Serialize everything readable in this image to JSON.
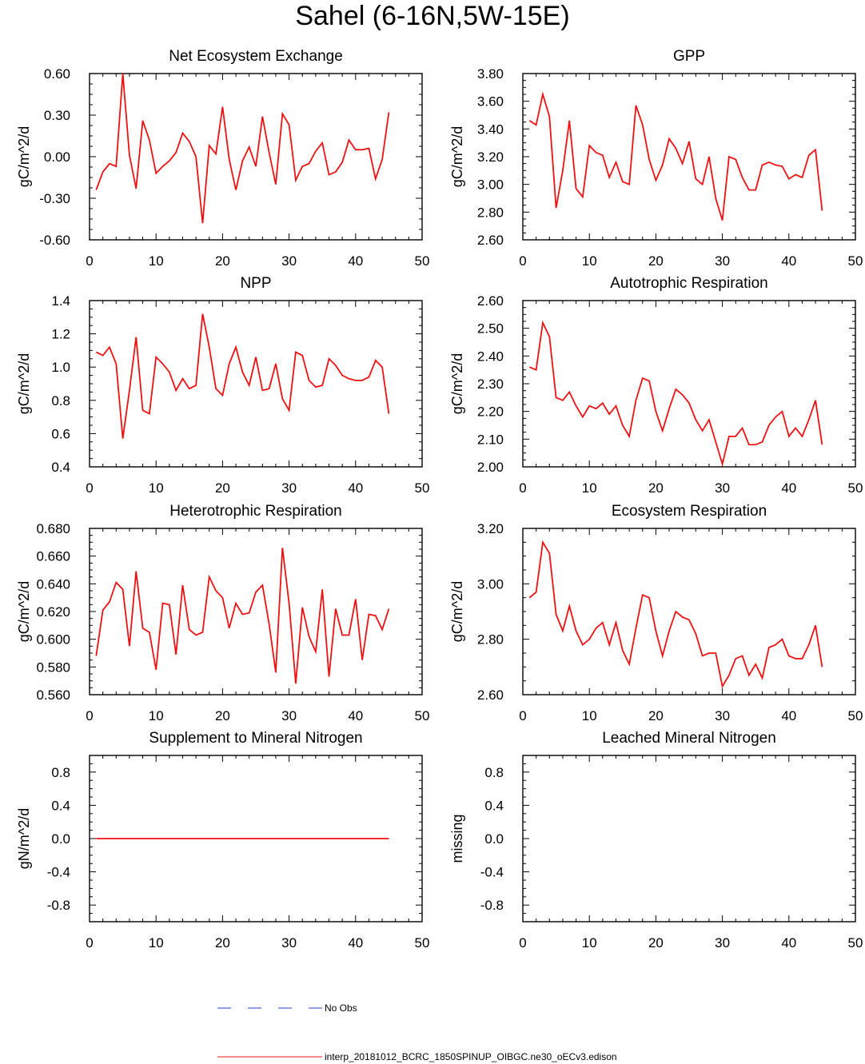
{
  "title": "Sahel (6-16N,5W-15E)",
  "colors": {
    "model": "#ee1111",
    "obs": "#1f3fd6",
    "axis": "#000000"
  },
  "legend": [
    {
      "label": "No Obs",
      "style": "dashed",
      "color": "#1f3fd6"
    },
    {
      "label": "interp_20181012_BCRC_1850SPINUP_OIBGC.ne30_oECv3.edison",
      "style": "solid",
      "color": "#ee1111"
    }
  ],
  "chart_data": [
    {
      "type": "line",
      "title": "Net Ecosystem Exchange",
      "ylabel": "gC/m^2/d",
      "xlim": [
        0,
        50
      ],
      "ylim": [
        -0.6,
        0.6
      ],
      "xticks": [
        "0",
        "10",
        "20",
        "30",
        "40",
        "50"
      ],
      "yticks": [
        "-0.60",
        "-0.30",
        "0.00",
        "0.30",
        "0.60"
      ],
      "x_start": 1,
      "series": [
        {
          "values": [
            -0.24,
            -0.11,
            -0.05,
            -0.07,
            0.6,
            0.01,
            -0.23,
            0.26,
            0.12,
            -0.12,
            -0.07,
            -0.03,
            0.03,
            0.17,
            0.11,
            0.0,
            -0.48,
            0.08,
            0.02,
            0.36,
            -0.02,
            -0.24,
            -0.03,
            0.07,
            -0.07,
            0.29,
            0.03,
            -0.2,
            0.31,
            0.23,
            -0.17,
            -0.07,
            -0.05,
            0.04,
            0.1,
            -0.13,
            -0.11,
            -0.04,
            0.12,
            0.05,
            0.05,
            0.06,
            -0.16,
            -0.02,
            0.32
          ]
        }
      ]
    },
    {
      "type": "line",
      "title": "GPP",
      "ylabel": "gC/m^2/d",
      "xlim": [
        0,
        50
      ],
      "ylim": [
        2.6,
        3.8
      ],
      "xticks": [
        "0",
        "10",
        "20",
        "30",
        "40",
        "50"
      ],
      "yticks": [
        "2.60",
        "2.80",
        "3.00",
        "3.20",
        "3.40",
        "3.60",
        "3.80"
      ],
      "x_start": 1,
      "series": [
        {
          "values": [
            3.46,
            3.43,
            3.65,
            3.49,
            2.83,
            3.1,
            3.46,
            2.97,
            2.91,
            3.28,
            3.23,
            3.21,
            3.05,
            3.16,
            3.02,
            3.0,
            3.57,
            3.43,
            3.18,
            3.03,
            3.14,
            3.33,
            3.26,
            3.15,
            3.31,
            3.04,
            3.0,
            3.2,
            2.9,
            2.74,
            3.2,
            3.18,
            3.05,
            2.96,
            2.96,
            3.14,
            3.16,
            3.14,
            3.13,
            3.04,
            3.07,
            3.05,
            3.21,
            3.25,
            2.81
          ]
        }
      ]
    },
    {
      "type": "line",
      "title": "NPP",
      "ylabel": "gC/m^2/d",
      "xlim": [
        0,
        50
      ],
      "ylim": [
        0.4,
        1.4
      ],
      "xticks": [
        "0",
        "10",
        "20",
        "30",
        "40",
        "50"
      ],
      "yticks": [
        "0.4",
        "0.6",
        "0.8",
        "1.0",
        "1.2",
        "1.4"
      ],
      "x_start": 1,
      "series": [
        {
          "values": [
            1.09,
            1.07,
            1.12,
            1.02,
            0.57,
            0.86,
            1.18,
            0.74,
            0.72,
            1.06,
            1.02,
            0.97,
            0.86,
            0.93,
            0.87,
            0.89,
            1.32,
            1.12,
            0.87,
            0.83,
            1.02,
            1.12,
            0.97,
            0.89,
            1.06,
            0.86,
            0.87,
            1.02,
            0.81,
            0.74,
            1.09,
            1.07,
            0.92,
            0.88,
            0.89,
            1.05,
            1.01,
            0.95,
            0.93,
            0.92,
            0.92,
            0.94,
            1.04,
            1.0,
            0.72
          ]
        }
      ]
    },
    {
      "type": "line",
      "title": "Autotrophic Respiration",
      "ylabel": "gC/m^2/d",
      "xlim": [
        0,
        50
      ],
      "ylim": [
        2.0,
        2.6
      ],
      "xticks": [
        "0",
        "10",
        "20",
        "30",
        "40",
        "50"
      ],
      "yticks": [
        "2.00",
        "2.10",
        "2.20",
        "2.30",
        "2.40",
        "2.50",
        "2.60"
      ],
      "x_start": 1,
      "series": [
        {
          "values": [
            2.36,
            2.35,
            2.52,
            2.47,
            2.25,
            2.24,
            2.27,
            2.22,
            2.18,
            2.22,
            2.21,
            2.23,
            2.19,
            2.22,
            2.15,
            2.11,
            2.24,
            2.32,
            2.31,
            2.2,
            2.13,
            2.21,
            2.28,
            2.26,
            2.23,
            2.17,
            2.13,
            2.17,
            2.09,
            2.01,
            2.11,
            2.11,
            2.14,
            2.08,
            2.08,
            2.09,
            2.15,
            2.18,
            2.2,
            2.11,
            2.14,
            2.11,
            2.17,
            2.24,
            2.08
          ]
        }
      ]
    },
    {
      "type": "line",
      "title": "Heterotrophic Respiration",
      "ylabel": "gC/m^2/d",
      "xlim": [
        0,
        50
      ],
      "ylim": [
        0.56,
        0.68
      ],
      "xticks": [
        "0",
        "10",
        "20",
        "30",
        "40",
        "50"
      ],
      "yticks": [
        "0.560",
        "0.580",
        "0.600",
        "0.620",
        "0.640",
        "0.660",
        "0.680"
      ],
      "x_start": 1,
      "series": [
        {
          "values": [
            0.588,
            0.621,
            0.627,
            0.641,
            0.636,
            0.595,
            0.649,
            0.608,
            0.605,
            0.578,
            0.626,
            0.625,
            0.589,
            0.639,
            0.607,
            0.603,
            0.605,
            0.645,
            0.635,
            0.63,
            0.608,
            0.626,
            0.618,
            0.619,
            0.634,
            0.639,
            0.611,
            0.576,
            0.666,
            0.626,
            0.568,
            0.623,
            0.602,
            0.591,
            0.636,
            0.573,
            0.622,
            0.603,
            0.603,
            0.629,
            0.585,
            0.618,
            0.617,
            0.607,
            0.622
          ]
        }
      ]
    },
    {
      "type": "line",
      "title": "Ecosystem Respiration",
      "ylabel": "gC/m^2/d",
      "xlim": [
        0,
        50
      ],
      "ylim": [
        2.6,
        3.2
      ],
      "xticks": [
        "0",
        "10",
        "20",
        "30",
        "40",
        "50"
      ],
      "yticks": [
        "2.60",
        "2.80",
        "3.00",
        "3.20"
      ],
      "x_start": 1,
      "series": [
        {
          "values": [
            2.95,
            2.97,
            3.15,
            3.11,
            2.89,
            2.83,
            2.92,
            2.83,
            2.78,
            2.8,
            2.84,
            2.86,
            2.78,
            2.86,
            2.76,
            2.71,
            2.84,
            2.96,
            2.95,
            2.83,
            2.74,
            2.83,
            2.9,
            2.88,
            2.87,
            2.82,
            2.74,
            2.75,
            2.75,
            2.63,
            2.67,
            2.73,
            2.74,
            2.67,
            2.71,
            2.66,
            2.77,
            2.78,
            2.8,
            2.74,
            2.73,
            2.73,
            2.78,
            2.85,
            2.7
          ]
        }
      ]
    },
    {
      "type": "line",
      "title": "Supplement to Mineral Nitrogen",
      "ylabel": "gN/m^2/d",
      "xlim": [
        0,
        50
      ],
      "ylim": [
        -1.0,
        1.0
      ],
      "xticks": [
        "0",
        "10",
        "20",
        "30",
        "40",
        "50"
      ],
      "yticks": [
        "-0.8",
        "-0.4",
        "0.0",
        "0.4",
        "0.8"
      ],
      "x_start": 1,
      "series": [
        {
          "values": [
            0,
            0,
            0,
            0,
            0,
            0,
            0,
            0,
            0,
            0,
            0,
            0,
            0,
            0,
            0,
            0,
            0,
            0,
            0,
            0,
            0,
            0,
            0,
            0,
            0,
            0,
            0,
            0,
            0,
            0,
            0,
            0,
            0,
            0,
            0,
            0,
            0,
            0,
            0,
            0,
            0,
            0,
            0,
            0,
            0
          ]
        }
      ]
    },
    {
      "type": "line",
      "title": "Leached Mineral Nitrogen",
      "ylabel": "missing",
      "xlim": [
        0,
        50
      ],
      "ylim": [
        -1.0,
        1.0
      ],
      "xticks": [
        "0",
        "10",
        "20",
        "30",
        "40",
        "50"
      ],
      "yticks": [
        "-0.8",
        "-0.4",
        "0.0",
        "0.4",
        "0.8"
      ],
      "x_start": 1,
      "series": []
    }
  ]
}
